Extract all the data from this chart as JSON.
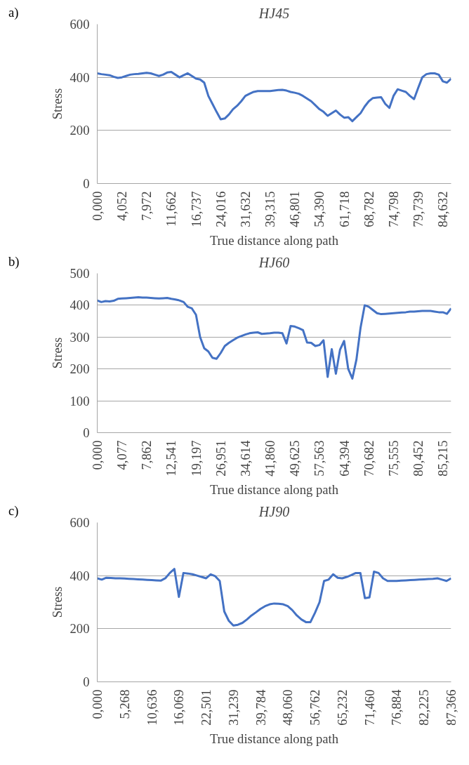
{
  "chart_data": [
    {
      "type": "line",
      "title": "HJ45",
      "xlabel": "True distance along path",
      "ylabel": "Stress",
      "annotations": [
        "a)"
      ],
      "color": "#4472c4",
      "grid": "y",
      "ylim": [
        0,
        600
      ],
      "yticks": [
        0,
        200,
        400,
        600
      ],
      "categories": [
        "0,000",
        null,
        null,
        null,
        null,
        null,
        "4,052",
        null,
        null,
        null,
        null,
        null,
        "7,972",
        null,
        null,
        null,
        null,
        null,
        "11,662",
        null,
        null,
        null,
        null,
        null,
        "16,737",
        null,
        null,
        null,
        null,
        null,
        "24,016",
        null,
        null,
        null,
        null,
        null,
        "31,632",
        null,
        null,
        null,
        null,
        null,
        "39,315",
        null,
        null,
        null,
        null,
        null,
        "46,801",
        null,
        null,
        null,
        null,
        null,
        "54,390",
        null,
        null,
        null,
        null,
        null,
        "61,718",
        null,
        null,
        null,
        null,
        null,
        "68,782",
        null,
        null,
        null,
        null,
        null,
        "74,798",
        null,
        null,
        null,
        null,
        null,
        "79,739",
        null,
        null,
        null,
        null,
        null,
        "84,632",
        null,
        null
      ],
      "values": [
        415,
        412,
        410,
        408,
        402,
        398,
        400,
        405,
        410,
        412,
        413,
        415,
        417,
        415,
        410,
        405,
        410,
        418,
        420,
        410,
        400,
        408,
        415,
        405,
        395,
        392,
        380,
        330,
        300,
        270,
        242,
        245,
        260,
        280,
        293,
        310,
        330,
        338,
        345,
        348,
        348,
        348,
        348,
        350,
        352,
        353,
        350,
        345,
        342,
        338,
        330,
        320,
        310,
        295,
        280,
        270,
        255,
        265,
        275,
        260,
        248,
        250,
        235,
        250,
        265,
        290,
        310,
        322,
        324,
        325,
        300,
        285,
        330,
        355,
        350,
        345,
        330,
        318,
        360,
        400,
        412,
        415,
        415,
        410,
        385,
        380,
        395
      ]
    },
    {
      "type": "line",
      "title": "HJ60",
      "xlabel": "True distance along path",
      "ylabel": "Stress",
      "annotations": [
        "b)"
      ],
      "color": "#4472c4",
      "grid": "y",
      "ylim": [
        0,
        500
      ],
      "yticks": [
        0,
        100,
        200,
        300,
        400,
        500
      ],
      "categories": [
        "0,000",
        null,
        null,
        null,
        null,
        null,
        "4,077",
        null,
        null,
        null,
        null,
        null,
        "7,862",
        null,
        null,
        null,
        null,
        null,
        "12,541",
        null,
        null,
        null,
        null,
        null,
        "19,197",
        null,
        null,
        null,
        null,
        null,
        "26,951",
        null,
        null,
        null,
        null,
        null,
        "34,614",
        null,
        null,
        null,
        null,
        null,
        "41,860",
        null,
        null,
        null,
        null,
        null,
        "49,625",
        null,
        null,
        null,
        null,
        null,
        "57,563",
        null,
        null,
        null,
        null,
        null,
        "64,394",
        null,
        null,
        null,
        null,
        null,
        "70,682",
        null,
        null,
        null,
        null,
        null,
        "75,555",
        null,
        null,
        null,
        null,
        null,
        "80,452",
        null,
        null,
        null,
        null,
        null,
        "85,215",
        null,
        null
      ],
      "values": [
        415,
        410,
        413,
        412,
        414,
        420,
        421,
        422,
        423,
        424,
        425,
        424,
        424,
        423,
        422,
        421,
        422,
        423,
        420,
        418,
        415,
        410,
        395,
        390,
        370,
        300,
        265,
        255,
        235,
        232,
        250,
        272,
        282,
        290,
        298,
        303,
        308,
        312,
        314,
        315,
        310,
        311,
        312,
        314,
        314,
        312,
        280,
        335,
        333,
        328,
        322,
        283,
        282,
        272,
        275,
        290,
        175,
        262,
        185,
        260,
        288,
        200,
        170,
        230,
        330,
        400,
        395,
        385,
        375,
        372,
        373,
        374,
        375,
        376,
        377,
        378,
        380,
        380,
        381,
        382,
        382,
        382,
        380,
        378,
        378,
        373,
        390
      ]
    },
    {
      "type": "line",
      "title": "HJ90",
      "xlabel": "True distance along path",
      "ylabel": "Stress",
      "annotations": [
        "c)"
      ],
      "color": "#4472c4",
      "grid": "y",
      "ylim": [
        0,
        600
      ],
      "yticks": [
        0,
        200,
        400,
        600
      ],
      "categories": [
        "0,000",
        null,
        null,
        null,
        null,
        null,
        "5,268",
        null,
        null,
        null,
        null,
        null,
        "10,636",
        null,
        null,
        null,
        null,
        null,
        "16,069",
        null,
        null,
        null,
        null,
        null,
        "22,501",
        null,
        null,
        null,
        null,
        null,
        "31,239",
        null,
        null,
        null,
        null,
        null,
        "39,784",
        null,
        null,
        null,
        null,
        null,
        "48,060",
        null,
        null,
        null,
        null,
        null,
        "56,762",
        null,
        null,
        null,
        null,
        null,
        "65,232",
        null,
        null,
        null,
        null,
        null,
        "71,460",
        null,
        null,
        null,
        null,
        null,
        "76,884",
        null,
        null,
        null,
        null,
        null,
        "82,225",
        null,
        null,
        null,
        null,
        null,
        "87,366"
      ],
      "values": [
        390,
        385,
        392,
        391,
        390,
        390,
        389,
        388,
        387,
        386,
        385,
        384,
        383,
        382,
        381,
        390,
        410,
        425,
        320,
        410,
        408,
        405,
        400,
        395,
        390,
        405,
        398,
        380,
        265,
        230,
        212,
        215,
        222,
        235,
        250,
        262,
        275,
        285,
        292,
        295,
        294,
        292,
        285,
        270,
        250,
        235,
        225,
        225,
        260,
        300,
        380,
        385,
        405,
        392,
        390,
        395,
        402,
        410,
        410,
        315,
        318,
        415,
        410,
        390,
        380,
        380,
        380,
        381,
        382,
        383,
        384,
        385,
        386,
        387,
        388,
        390,
        385,
        380,
        390
      ]
    }
  ]
}
